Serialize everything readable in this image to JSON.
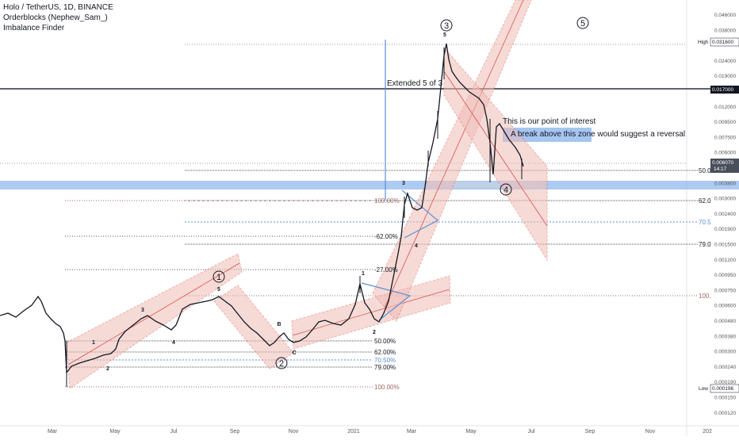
{
  "header": {
    "symbol": "Holo / TetherUS, 1D, BINANCE",
    "indicator_1": "Orderblocks (Nephew_Sam_)",
    "indicator_2": "Imbalance Finder"
  },
  "annotations": {
    "extended": "Extended 5 of 3",
    "poi": "This is our point of interest",
    "break_note": "A break above this zone would suggest a reversal"
  },
  "wave_labels": {
    "big_1": "1",
    "big_2": "2",
    "big_3": "3",
    "big_4": "4",
    "big_5": "5",
    "w1": "1",
    "w2": "2",
    "w3": "3",
    "w4": "4",
    "w5": "5",
    "wB": "B",
    "wC": "C",
    "v1": "1",
    "v2": "2",
    "v3": "3",
    "v4": "4",
    "v5": "5",
    "s3": "3",
    "s4": "4"
  },
  "fib_labels": {
    "a50": "50.00%",
    "a62": "62.00%",
    "a705": "70.50%",
    "a79": "79.00%",
    "a100": "100.00%",
    "b100": "100.00%",
    "b62": "-62.00%",
    "b27": "-27.00%",
    "r50": "50.0",
    "r62": "62.0",
    "r705": "70.5",
    "r79": "79.0",
    "r100": "100."
  },
  "price_axis": {
    "high_tag": "High",
    "high_value": "0.031600",
    "low_tag": "Low",
    "low_value": "0.000196",
    "current_price": "0.006070",
    "countdown": "14:17",
    "line_value": "0.017000",
    "ticks": [
      "0.046000",
      "0.038000",
      "0.031600",
      "0.024000",
      "0.019000",
      "0.015000",
      "0.012000",
      "0.009500",
      "0.007500",
      "0.006000",
      "0.004800",
      "0.003800",
      "0.003000",
      "0.002400",
      "0.001900",
      "0.001500",
      "0.001200",
      "0.000950",
      "0.000750",
      "0.000600",
      "0.000480",
      "0.000380",
      "0.000300",
      "0.000240",
      "0.000190",
      "0.000150",
      "0.000120"
    ]
  },
  "time_axis": {
    "labels": [
      "Mar",
      "May",
      "Jul",
      "Sep",
      "Nov",
      "2021",
      "Mar",
      "May",
      "Jul",
      "Sep",
      "Nov",
      "202"
    ]
  },
  "colors": {
    "bull": "#26a69a",
    "bear": "#ef5350",
    "candle": "#131722",
    "channel_fill": "#f0bcb6",
    "channel_edge": "#e06a60",
    "zone_blue": "#90b8ee",
    "fib_blue": "#5b8fd6",
    "accent_blue": "#2962ff",
    "dark_line": "#2a2e39"
  }
}
